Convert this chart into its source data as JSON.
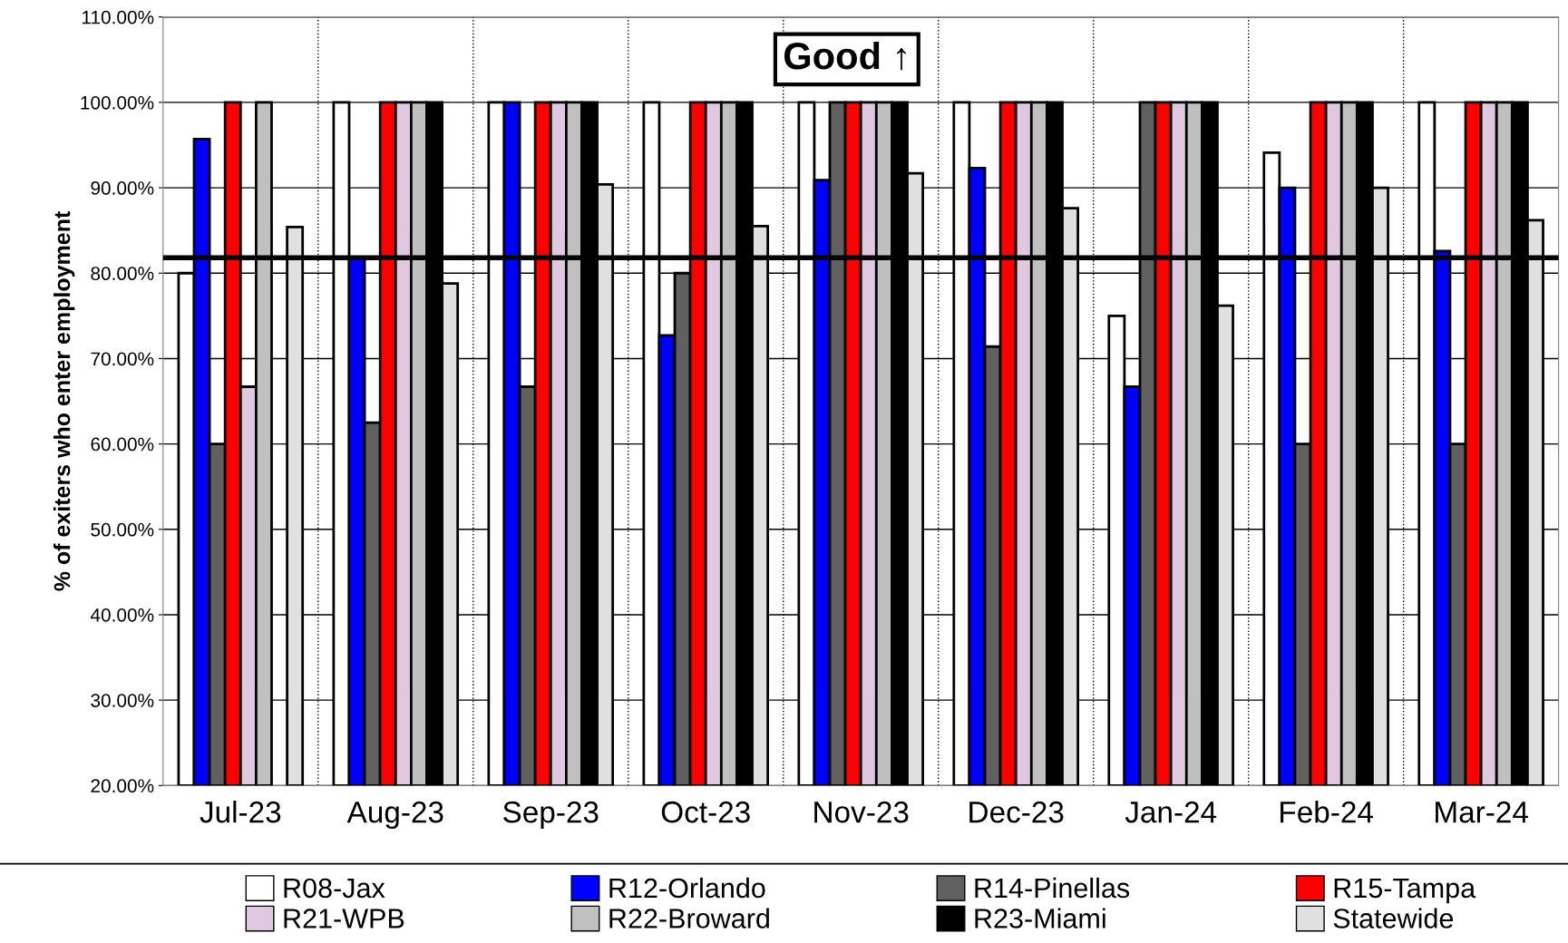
{
  "chart_data": {
    "type": "bar",
    "ylabel": "% of exiters who enter employment",
    "categories": [
      "Jul-23",
      "Aug-23",
      "Sep-23",
      "Oct-23",
      "Nov-23",
      "Dec-23",
      "Jan-24",
      "Feb-24",
      "Mar-24"
    ],
    "series": [
      {
        "name": "R08-Jax",
        "color": "#ffffff",
        "values": [
          80,
          100,
          100,
          100,
          100,
          100,
          75,
          94.1,
          100
        ]
      },
      {
        "name": "R12-Orlando",
        "color": "#0000ff",
        "values": [
          95.7,
          81.8,
          100,
          72.7,
          90.9,
          92.3,
          66.7,
          90,
          82.6
        ]
      },
      {
        "name": "R14-Pinellas",
        "color": "#606060",
        "values": [
          60,
          62.5,
          66.7,
          80,
          100,
          71.4,
          100,
          60,
          60
        ]
      },
      {
        "name": "R15-Tampa",
        "color": "#ff0000",
        "values": [
          100,
          100,
          100,
          100,
          100,
          100,
          100,
          100,
          100
        ]
      },
      {
        "name": "R21-WPB",
        "color": "#e0c8e0",
        "values": [
          66.7,
          100,
          100,
          100,
          100,
          100,
          100,
          100,
          100
        ]
      },
      {
        "name": "R22-Broward",
        "color": "#c0c0c0",
        "values": [
          100,
          100,
          100,
          100,
          100,
          100,
          100,
          100,
          100
        ]
      },
      {
        "name": "R23-Miami",
        "color": "#000000",
        "values": [
          null,
          100,
          100,
          100,
          100,
          100,
          100,
          100,
          100
        ]
      },
      {
        "name": "Statewide",
        "color": "#e0e0e0",
        "values": [
          85.4,
          78.8,
          90.4,
          85.5,
          91.7,
          87.6,
          76.2,
          90,
          86.2
        ]
      }
    ],
    "ylim": [
      20,
      110
    ],
    "yticks": [
      {
        "value": 20,
        "label": "20.00%"
      },
      {
        "value": 30,
        "label": "30.00%"
      },
      {
        "value": 40,
        "label": "40.00%"
      },
      {
        "value": 50,
        "label": "50.00%"
      },
      {
        "value": 60,
        "label": "60.00%"
      },
      {
        "value": 70,
        "label": "70.00%"
      },
      {
        "value": 80,
        "label": "80.00%"
      },
      {
        "value": 90,
        "label": "90.00%"
      },
      {
        "value": 100,
        "label": "100.00%"
      },
      {
        "value": 110,
        "label": "110.00%"
      }
    ],
    "ref_lines": [
      {
        "axis": "y",
        "value": 81.8,
        "color": "#000000"
      }
    ],
    "annotations": [
      "Good ↑"
    ],
    "grid": true,
    "legend": "bottom"
  }
}
